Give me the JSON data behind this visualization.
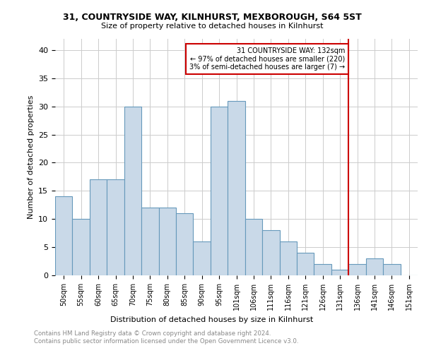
{
  "title1": "31, COUNTRYSIDE WAY, KILNHURST, MEXBOROUGH, S64 5ST",
  "title2": "Size of property relative to detached houses in Kilnhurst",
  "xlabel": "Distribution of detached houses by size in Kilnhurst",
  "ylabel": "Number of detached properties",
  "categories": [
    "50sqm",
    "55sqm",
    "60sqm",
    "65sqm",
    "70sqm",
    "75sqm",
    "80sqm",
    "85sqm",
    "90sqm",
    "95sqm",
    "101sqm",
    "106sqm",
    "111sqm",
    "116sqm",
    "121sqm",
    "126sqm",
    "131sqm",
    "136sqm",
    "141sqm",
    "146sqm",
    "151sqm"
  ],
  "values": [
    14,
    10,
    17,
    17,
    30,
    12,
    12,
    11,
    6,
    30,
    31,
    10,
    8,
    6,
    4,
    2,
    1,
    2,
    3,
    2,
    0
  ],
  "bar_color": "#c9d9e8",
  "bar_edge_color": "#6699bb",
  "grid_color": "#cccccc",
  "vline_index": 16,
  "vline_color": "#cc0000",
  "annotation_text": "31 COUNTRYSIDE WAY: 132sqm\n← 97% of detached houses are smaller (220)\n3% of semi-detached houses are larger (7) →",
  "annotation_box_color": "#cc0000",
  "footer": "Contains HM Land Registry data © Crown copyright and database right 2024.\nContains public sector information licensed under the Open Government Licence v3.0.",
  "ylim": [
    0,
    42
  ],
  "yticks": [
    0,
    5,
    10,
    15,
    20,
    25,
    30,
    35,
    40
  ]
}
